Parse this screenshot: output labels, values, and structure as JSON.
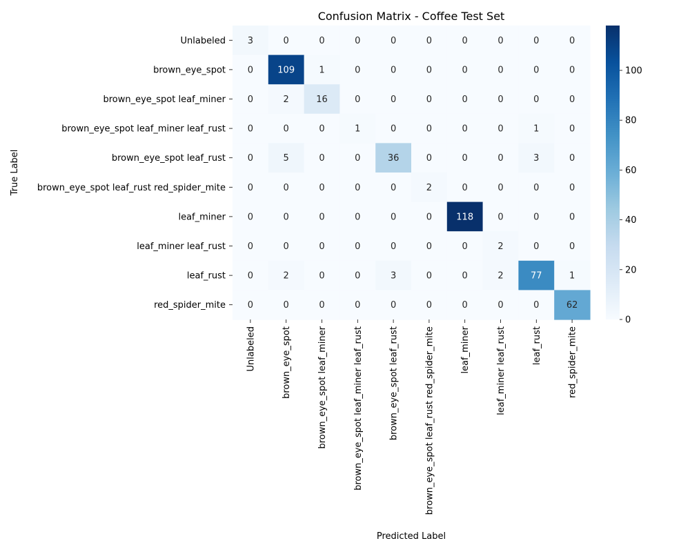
{
  "chart_data": {
    "type": "heatmap",
    "title": "Confusion Matrix - Coffee Test Set",
    "xlabel": "Predicted Label",
    "ylabel": "True Label",
    "labels": [
      "Unlabeled",
      "brown_eye_spot",
      "brown_eye_spot leaf_miner",
      "brown_eye_spot leaf_miner leaf_rust",
      "brown_eye_spot leaf_rust",
      "brown_eye_spot leaf_rust red_spider_mite",
      "leaf_miner",
      "leaf_miner leaf_rust",
      "leaf_rust",
      "red_spider_mite"
    ],
    "matrix": [
      [
        3,
        0,
        0,
        0,
        0,
        0,
        0,
        0,
        0,
        0
      ],
      [
        0,
        109,
        1,
        0,
        0,
        0,
        0,
        0,
        0,
        0
      ],
      [
        0,
        2,
        16,
        0,
        0,
        0,
        0,
        0,
        0,
        0
      ],
      [
        0,
        0,
        0,
        1,
        0,
        0,
        0,
        0,
        1,
        0
      ],
      [
        0,
        5,
        0,
        0,
        36,
        0,
        0,
        0,
        3,
        0
      ],
      [
        0,
        0,
        0,
        0,
        0,
        2,
        0,
        0,
        0,
        0
      ],
      [
        0,
        0,
        0,
        0,
        0,
        0,
        118,
        0,
        0,
        0
      ],
      [
        0,
        0,
        0,
        0,
        0,
        0,
        0,
        2,
        0,
        0
      ],
      [
        0,
        2,
        0,
        0,
        3,
        0,
        0,
        2,
        77,
        1
      ],
      [
        0,
        0,
        0,
        0,
        0,
        0,
        0,
        0,
        0,
        62
      ]
    ],
    "colormap": "Blues",
    "colorbar": {
      "min": 0,
      "max": 118,
      "ticks": [
        0,
        20,
        40,
        60,
        80,
        100
      ]
    },
    "grid": false,
    "legend": "colorbar-right"
  }
}
